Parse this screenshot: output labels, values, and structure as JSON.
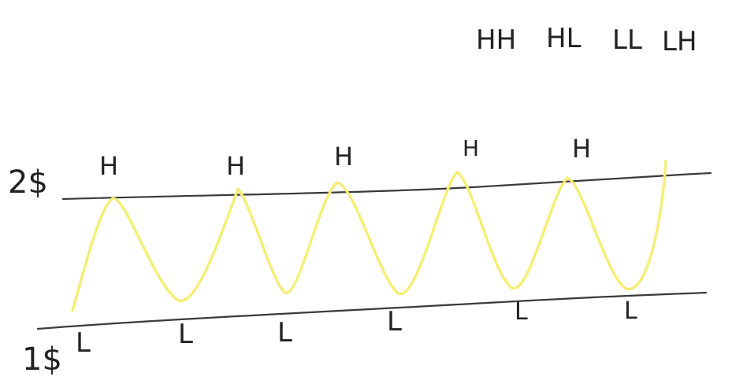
{
  "price_levels": {
    "upper_label": "2$",
    "lower_label": "1$"
  },
  "legend": {
    "combos": [
      "HH",
      "HL",
      "LL",
      "LH"
    ]
  },
  "peaks": [
    "H",
    "H",
    "H",
    "H",
    "H"
  ],
  "troughs": [
    "L",
    "L",
    "L",
    "L",
    "L",
    "L"
  ],
  "colors": {
    "wave": "#f5ee74",
    "lines": "#3a3a3a",
    "ink": "#1e1e1e",
    "background": "#ffffff"
  }
}
